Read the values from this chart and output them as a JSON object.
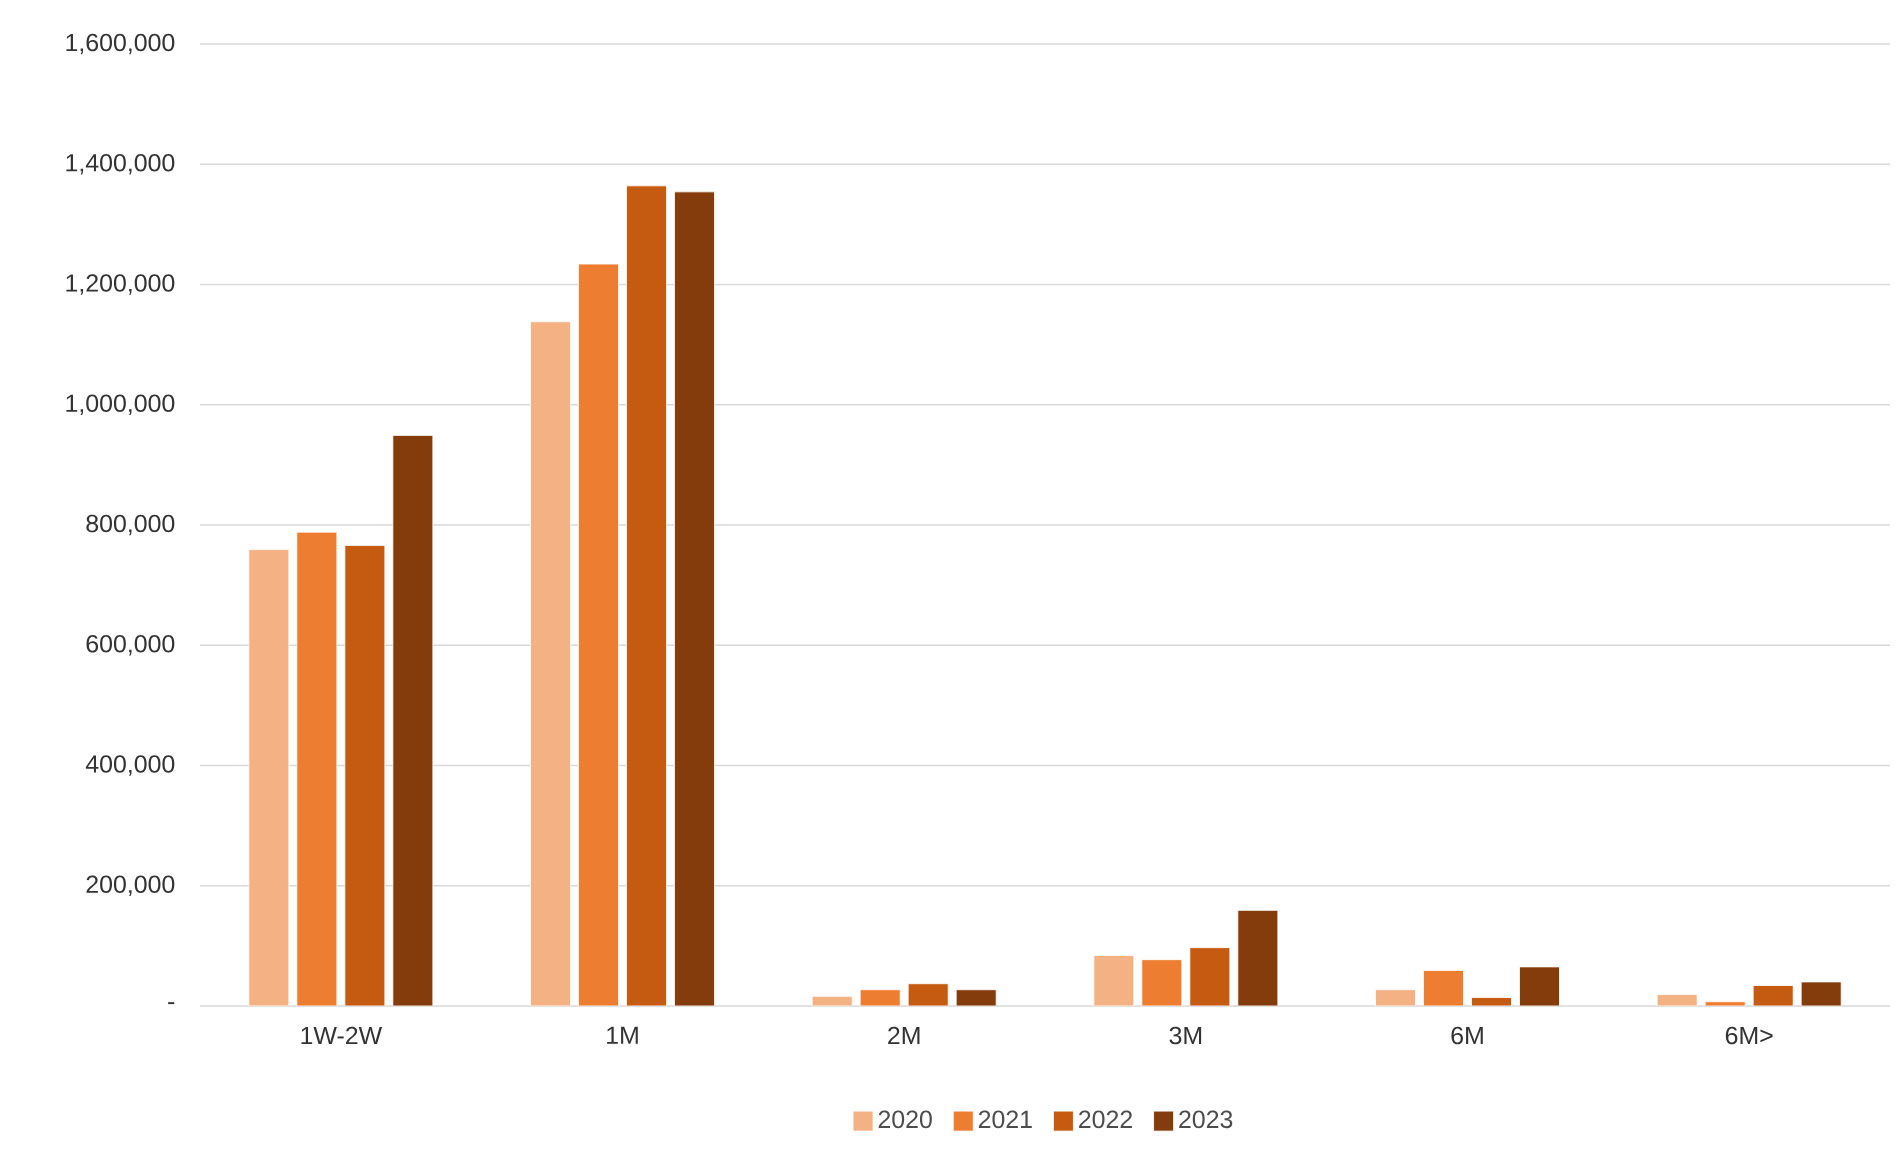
{
  "chart_data": {
    "type": "bar",
    "categories": [
      "1W-2W",
      "1M",
      "2M",
      "3M",
      "6M",
      "6M>"
    ],
    "series": [
      {
        "name": "2020",
        "color": "#f4b183",
        "values": [
          759000,
          1138000,
          16000,
          84000,
          27000,
          19000
        ]
      },
      {
        "name": "2021",
        "color": "#ed7d31",
        "values": [
          788000,
          1234000,
          27000,
          77000,
          59000,
          7000
        ]
      },
      {
        "name": "2022",
        "color": "#c55a11",
        "values": [
          766000,
          1364000,
          37000,
          97000,
          14000,
          34000
        ]
      },
      {
        "name": "2023",
        "color": "#843c0c",
        "values": [
          949000,
          1354000,
          27000,
          159000,
          65000,
          40000
        ]
      }
    ],
    "ylim": [
      0,
      1600000
    ],
    "yticks": [
      {
        "value": 0,
        "label": "-"
      },
      {
        "value": 200000,
        "label": "200,000"
      },
      {
        "value": 400000,
        "label": "400,000"
      },
      {
        "value": 600000,
        "label": "600,000"
      },
      {
        "value": 800000,
        "label": "800,000"
      },
      {
        "value": 1000000,
        "label": "1,000,000"
      },
      {
        "value": 1200000,
        "label": "1,200,000"
      },
      {
        "value": 1400000,
        "label": "1,400,000"
      },
      {
        "value": 1600000,
        "label": "1,600,000"
      }
    ],
    "grid": "y",
    "legend": "bottom"
  }
}
